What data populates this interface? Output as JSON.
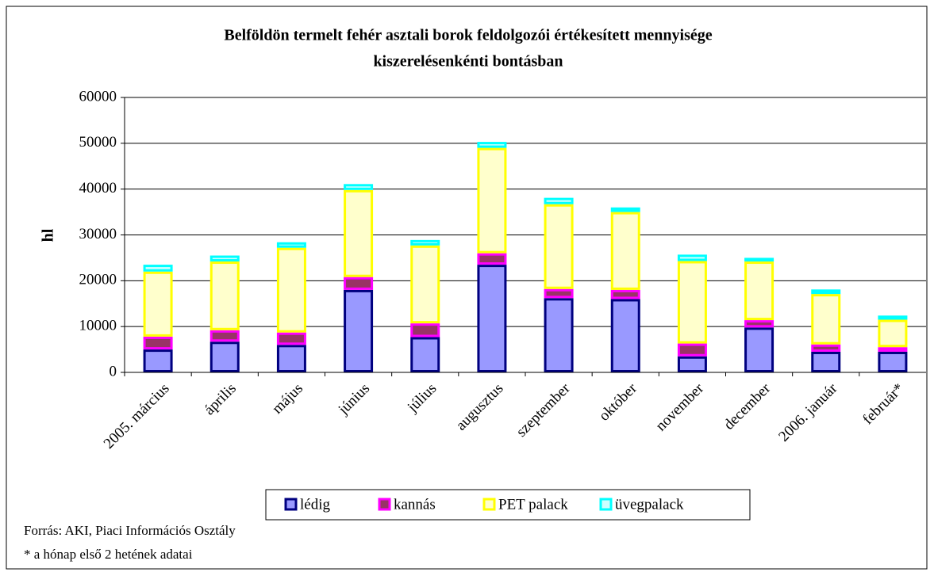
{
  "chart_data": {
    "type": "stacked_bar",
    "title": [
      "Belföldön termelt fehér asztali borok feldolgozói értékesített mennyisége",
      "kiszerelésenkénti bontásban"
    ],
    "y_label": "hl",
    "categories": [
      "2005. március",
      "április",
      "május",
      "június",
      "július",
      "augusztus",
      "szeptember",
      "október",
      "november",
      "december",
      "2006. január",
      "február*"
    ],
    "series": [
      {
        "name": "lédig",
        "color": "#9999ff",
        "stroke": "#000080",
        "values": [
          5000,
          6700,
          6000,
          18000,
          7700,
          23500,
          16200,
          16000,
          3500,
          9800,
          4500,
          4500
        ]
      },
      {
        "name": "kannás",
        "color": "#993366",
        "stroke": "#ff00ff",
        "values": [
          2800,
          2500,
          2700,
          2800,
          3000,
          2500,
          2000,
          2000,
          2800,
          1600,
          1600,
          1000
        ]
      },
      {
        "name": "PET palack",
        "color": "#ffffcc",
        "stroke": "#ffff00",
        "values": [
          14200,
          15000,
          18500,
          19000,
          17000,
          23000,
          18500,
          17000,
          18000,
          12800,
          11000,
          6000
        ]
      },
      {
        "name": "üvegpalack",
        "color": "#ccffff",
        "stroke": "#00ffff",
        "values": [
          1500,
          1300,
          1200,
          1300,
          1200,
          1300,
          1400,
          1000,
          1400,
          800,
          1000,
          900
        ]
      }
    ],
    "ylim": [
      0,
      60000
    ],
    "yticks": [
      0,
      10000,
      20000,
      30000,
      40000,
      50000,
      60000
    ],
    "grid": true,
    "source": "Forrás: AKI, Piaci Információs Osztály",
    "note": "* a hónap első 2 hetének adatai"
  }
}
